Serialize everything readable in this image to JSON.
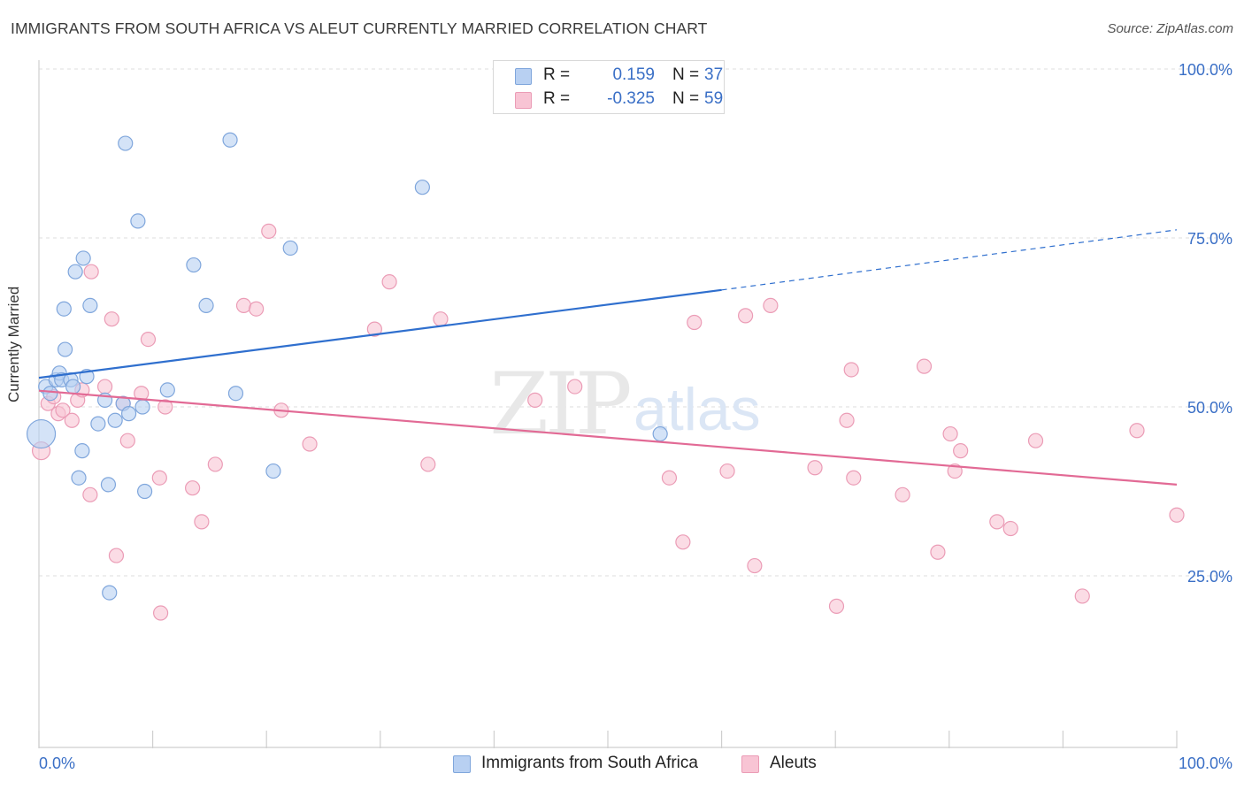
{
  "header": {
    "title": "IMMIGRANTS FROM SOUTH AFRICA VS ALEUT CURRENTLY MARRIED CORRELATION CHART",
    "source": "Source: ZipAtlas.com"
  },
  "watermark": {
    "zip": "ZIP",
    "atlas": "atlas"
  },
  "legend_top": [
    {
      "r_label": "R =",
      "r_value": "0.159",
      "n_label": "N =",
      "n_value": "37"
    },
    {
      "r_label": "R =",
      "r_value": "-0.325",
      "n_label": "N =",
      "n_value": "59"
    }
  ],
  "legend_bottom": [
    {
      "label": "Immigrants from South Africa"
    },
    {
      "label": "Aleuts"
    }
  ],
  "colors": {
    "blue_fill": "#b8d0f2",
    "blue_stroke": "#7fa6dc",
    "blue_line": "#2f6fce",
    "pink_fill": "#f8c4d4",
    "pink_stroke": "#eb9cb6",
    "pink_line": "#e26a95",
    "tick_label": "#3a6fc6",
    "grid": "#dddddd"
  },
  "chart_data": {
    "type": "scatter",
    "title": "IMMIGRANTS FROM SOUTH AFRICA VS ALEUT CURRENTLY MARRIED CORRELATION CHART",
    "xlabel": "",
    "ylabel": "Currently Married",
    "xlim": [
      0,
      100
    ],
    "ylim": [
      0,
      105
    ],
    "x_tick_labels": [
      "0.0%",
      "100.0%"
    ],
    "y_ticks": [
      25,
      50,
      75,
      100
    ],
    "y_tick_labels": [
      "25.0%",
      "50.0%",
      "75.0%",
      "100.0%"
    ],
    "grid": true,
    "legend_position": "top-center",
    "series": [
      {
        "name": "Immigrants from South Africa",
        "color": "#b8d0f2",
        "r": 0.159,
        "n": 37,
        "trend": {
          "x0": 0,
          "y0": 54.3,
          "x1": 60,
          "y1": 67.3,
          "dashed_to_x": 100,
          "dashed_to_y": 76.2
        },
        "points": [
          [
            0.2,
            46,
            16
          ],
          [
            0.6,
            53,
            8
          ],
          [
            1.0,
            52,
            8
          ],
          [
            1.5,
            54,
            8
          ],
          [
            1.8,
            55,
            8
          ],
          [
            2.0,
            54,
            8
          ],
          [
            2.2,
            64.5,
            8
          ],
          [
            2.3,
            58.5,
            8
          ],
          [
            2.8,
            54,
            8
          ],
          [
            3.0,
            53,
            8
          ],
          [
            3.2,
            70,
            8
          ],
          [
            3.5,
            39.5,
            8
          ],
          [
            3.8,
            43.5,
            8
          ],
          [
            3.9,
            72,
            8
          ],
          [
            4.2,
            54.5,
            8
          ],
          [
            4.5,
            65,
            8
          ],
          [
            5.2,
            47.5,
            8
          ],
          [
            5.8,
            51,
            8
          ],
          [
            6.1,
            38.5,
            8
          ],
          [
            6.2,
            22.5,
            8
          ],
          [
            6.7,
            48,
            8
          ],
          [
            7.4,
            50.5,
            8
          ],
          [
            7.6,
            89,
            8
          ],
          [
            7.9,
            49,
            8
          ],
          [
            8.7,
            77.5,
            8
          ],
          [
            9.1,
            50,
            8
          ],
          [
            9.3,
            37.5,
            8
          ],
          [
            11.3,
            52.5,
            8
          ],
          [
            13.6,
            71,
            8
          ],
          [
            14.7,
            65,
            8
          ],
          [
            16.8,
            89.5,
            8
          ],
          [
            17.3,
            52,
            8
          ],
          [
            20.6,
            40.5,
            8
          ],
          [
            22.1,
            73.5,
            8
          ],
          [
            33.7,
            82.5,
            8
          ],
          [
            54.6,
            46,
            8
          ]
        ]
      },
      {
        "name": "Aleuts",
        "color": "#f8c4d4",
        "r": -0.325,
        "n": 59,
        "trend": {
          "x0": 0,
          "y0": 52.4,
          "x1": 100,
          "y1": 38.5
        },
        "points": [
          [
            0.2,
            43.5,
            10
          ],
          [
            0.8,
            50.5,
            8
          ],
          [
            1.3,
            51.5,
            8
          ],
          [
            1.7,
            49,
            8
          ],
          [
            2.1,
            49.5,
            8
          ],
          [
            2.9,
            48,
            8
          ],
          [
            3.4,
            51,
            8
          ],
          [
            3.8,
            52.5,
            8
          ],
          [
            4.5,
            37,
            8
          ],
          [
            4.6,
            70,
            8
          ],
          [
            5.8,
            53,
            8
          ],
          [
            6.4,
            63,
            8
          ],
          [
            6.8,
            28,
            8
          ],
          [
            7.4,
            50.5,
            8
          ],
          [
            7.8,
            45,
            8
          ],
          [
            9.0,
            52,
            8
          ],
          [
            9.6,
            60,
            8
          ],
          [
            10.6,
            39.5,
            8
          ],
          [
            10.7,
            19.5,
            8
          ],
          [
            11.1,
            50,
            8
          ],
          [
            13.5,
            38,
            8
          ],
          [
            14.3,
            33,
            8
          ],
          [
            15.5,
            41.5,
            8
          ],
          [
            18.0,
            65,
            8
          ],
          [
            19.1,
            64.5,
            8
          ],
          [
            20.2,
            76,
            8
          ],
          [
            21.3,
            49.5,
            8
          ],
          [
            23.8,
            44.5,
            8
          ],
          [
            29.5,
            61.5,
            8
          ],
          [
            30.8,
            68.5,
            8
          ],
          [
            34.2,
            41.5,
            8
          ],
          [
            35.3,
            63,
            8
          ],
          [
            43.6,
            51,
            8
          ],
          [
            47.1,
            53,
            8
          ],
          [
            55.4,
            39.5,
            8
          ],
          [
            56.6,
            30,
            8
          ],
          [
            57.6,
            62.5,
            8
          ],
          [
            60.5,
            40.5,
            8
          ],
          [
            62.1,
            63.5,
            8
          ],
          [
            62.9,
            26.5,
            8
          ],
          [
            64.3,
            65,
            8
          ],
          [
            68.2,
            41,
            8
          ],
          [
            70.1,
            20.5,
            8
          ],
          [
            71.0,
            48,
            8
          ],
          [
            71.4,
            55.5,
            8
          ],
          [
            71.6,
            39.5,
            8
          ],
          [
            75.9,
            37,
            8
          ],
          [
            77.8,
            56,
            8
          ],
          [
            79.0,
            28.5,
            8
          ],
          [
            80.1,
            46,
            8
          ],
          [
            80.5,
            40.5,
            8
          ],
          [
            81.0,
            43.5,
            8
          ],
          [
            84.2,
            33,
            8
          ],
          [
            85.4,
            32,
            8
          ],
          [
            87.6,
            45,
            8
          ],
          [
            91.7,
            22,
            8
          ],
          [
            96.5,
            46.5,
            8
          ],
          [
            100.0,
            34,
            8
          ]
        ]
      }
    ]
  }
}
